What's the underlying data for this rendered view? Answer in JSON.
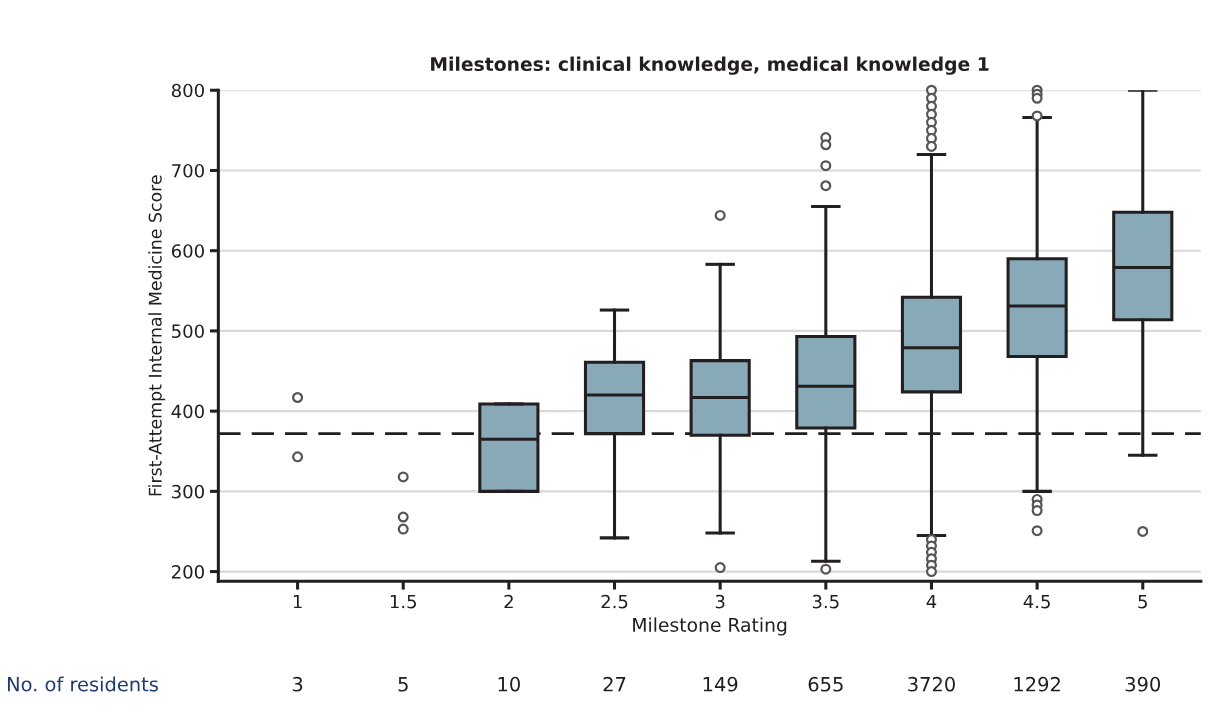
{
  "chart_data": {
    "type": "box",
    "title": "Milestones: clinical knowledge, medical knowledge 1",
    "xlabel": "Milestone Rating",
    "ylabel": "First-Attempt Internal Medicine Score",
    "categories": [
      "1",
      "1.5",
      "2",
      "2.5",
      "3",
      "3.5",
      "4",
      "4.5",
      "5"
    ],
    "series": [
      {
        "color": "#88aab8",
        "boxes": [
          null,
          null,
          {
            "low": 300,
            "q1": 300,
            "median": 365,
            "q3": 409,
            "high": 409
          },
          {
            "low": 242,
            "q1": 372,
            "median": 420,
            "q3": 461,
            "high": 526
          },
          {
            "low": 248,
            "q1": 370,
            "median": 417,
            "q3": 463,
            "high": 583,
            "outliers": [
              644,
              205
            ]
          },
          {
            "low": 213,
            "q1": 379,
            "median": 431,
            "q3": 493,
            "high": 655,
            "outliers": [
              741,
              732,
              706,
              681,
              203
            ]
          },
          {
            "low": 245,
            "q1": 424,
            "median": 479,
            "q3": 542,
            "high": 720,
            "outliers": [
              800,
              790,
              780,
              770,
              760,
              750,
              740,
              730,
              240,
              232,
              224,
              216,
              208,
              200
            ]
          },
          {
            "low": 300,
            "q1": 468,
            "median": 531,
            "q3": 590,
            "high": 766,
            "outliers": [
              800,
              795,
              790,
              768,
              290,
              283,
              276,
              251
            ]
          },
          {
            "low": 345,
            "q1": 514,
            "median": 579,
            "q3": 648,
            "high": 800,
            "outliers": [
              250
            ]
          }
        ]
      },
      {
        "type": "scatter",
        "color": "#555555",
        "marker": "circle",
        "x": [
          "1",
          "1",
          "1.5",
          "1.5",
          "1.5"
        ],
        "values": [
          417,
          343,
          318,
          268,
          253
        ]
      }
    ],
    "ylim": [
      188,
      800
    ],
    "yticks": [
      200,
      300,
      400,
      500,
      600,
      700,
      800
    ],
    "grid": "y",
    "ref_lines": [
      {
        "axis": "y",
        "value": 372,
        "line_style": "dashed",
        "color": "#231f20"
      }
    ],
    "annotations": [
      "No. of residents",
      "3",
      "5",
      "10",
      "27",
      "149",
      "655",
      "3720",
      "1292",
      "390"
    ]
  }
}
